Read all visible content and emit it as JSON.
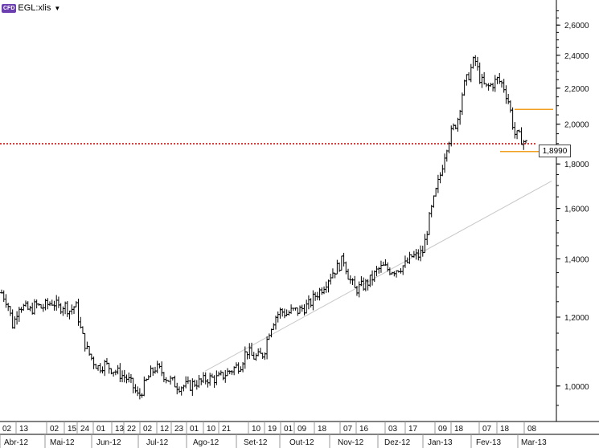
{
  "header": {
    "badge": "CFD",
    "symbol": "EGL:xlis"
  },
  "last_price_label": "1,8990",
  "colors": {
    "candle": "#000000",
    "trendline": "#c8c8c8",
    "dotted_line": "#cc0000",
    "box_lines": "#f0a020",
    "badge": "#6c3fb0"
  },
  "chart_data": {
    "type": "ohlc",
    "y_scale": "log",
    "ylim": [
      0.92,
      2.72
    ],
    "y_ticks": [
      {
        "value": 1.0,
        "label": "1,0000"
      },
      {
        "value": 1.2,
        "label": "1,2000"
      },
      {
        "value": 1.4,
        "label": "1,4000"
      },
      {
        "value": 1.6,
        "label": "1,6000"
      },
      {
        "value": 1.8,
        "label": "1,8000"
      },
      {
        "value": 2.0,
        "label": "2,0000"
      },
      {
        "value": 2.2,
        "label": "2,2000"
      },
      {
        "value": 2.4,
        "label": "2,4000"
      },
      {
        "value": 2.6,
        "label": "2,6000"
      }
    ],
    "day_labels": [
      "02",
      "13",
      "02",
      "15",
      "24",
      "01",
      "13",
      "22",
      "02",
      "12",
      "23",
      "01",
      "10",
      "21",
      "10",
      "19",
      "01",
      "09",
      "18",
      "07",
      "16",
      "03",
      "17",
      "09",
      "18",
      "07",
      "18",
      "08"
    ],
    "month_labels": [
      "Abr-12",
      "Mai-12",
      "Jun-12",
      "Jul-12",
      "Ago-12",
      "Set-12",
      "Out-12",
      "Nov-12",
      "Dez-12",
      "Jan-13",
      "Fev-13",
      "Mar-13"
    ],
    "last_price": 1.899,
    "dotted_level": 1.899,
    "box_levels": {
      "upper": 2.08,
      "lower": 1.86
    },
    "trendline": {
      "start": 1.04,
      "end": 1.72
    },
    "close_path": [
      1.28,
      1.25,
      1.17,
      1.24,
      1.23,
      1.22,
      1.24,
      1.23,
      1.24,
      1.25,
      1.23,
      1.24,
      1.22,
      1.24,
      1.15,
      1.1,
      1.07,
      1.05,
      1.06,
      1.05,
      1.04,
      1.03,
      1.02,
      1.0,
      0.97,
      1.0,
      1.03,
      1.05,
      1.04,
      1.02,
      1.01,
      1.0,
      1.0,
      1.0,
      1.01,
      1.01,
      1.02,
      1.02,
      1.02,
      1.03,
      1.04,
      1.05,
      1.06,
      1.1,
      1.08,
      1.08,
      1.09,
      1.16,
      1.2,
      1.22,
      1.21,
      1.22,
      1.22,
      1.23,
      1.24,
      1.27,
      1.29,
      1.32,
      1.35,
      1.37,
      1.4,
      1.33,
      1.29,
      1.3,
      1.31,
      1.33,
      1.36,
      1.37,
      1.36,
      1.36,
      1.37,
      1.38,
      1.41,
      1.41,
      1.43,
      1.55,
      1.65,
      1.75,
      1.88,
      1.96,
      2.02,
      2.2,
      2.28,
      2.38,
      2.25,
      2.2,
      2.22,
      2.25,
      2.22,
      2.12,
      1.95,
      1.93,
      1.9
    ]
  }
}
